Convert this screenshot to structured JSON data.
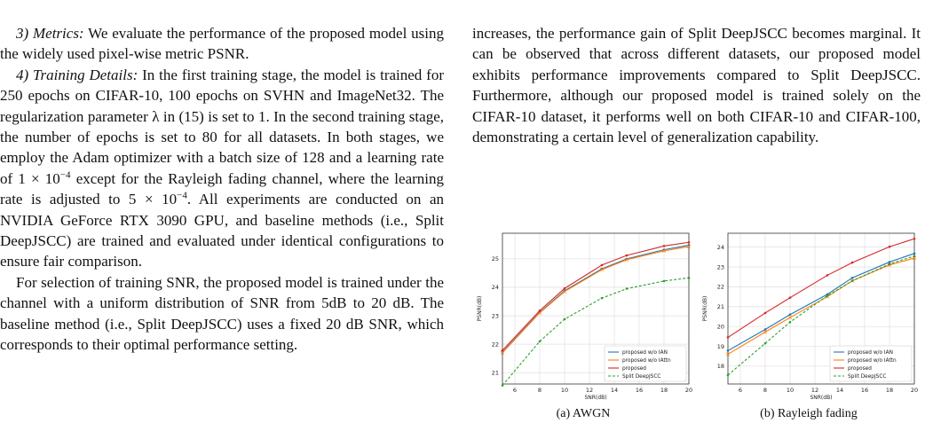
{
  "left_column": {
    "metrics_heading": "3) Metrics:",
    "metrics_text": " We evaluate the performance of the proposed model using the widely used pixel-wise metric PSNR.",
    "training_heading": "4) Training Details:",
    "training_text_1": " In the first training stage, the model is trained for 250 epochs on CIFAR-10, 100 epochs on SVHN and ImageNet32. The regularization parameter λ in (15) is set to 1. In the second training stage, the number of epochs is set to 80 for all datasets. In both stages, we employ the Adam optimizer with a batch size of 128 and a learning rate of 1 × 10",
    "lr_exp_1": "−4",
    "training_text_2": " except for the Rayleigh fading channel, where the learning rate is adjusted to 5 × 10",
    "lr_exp_2": "−4",
    "training_text_3": ". All experiments are conducted on an NVIDIA GeForce RTX 3090 GPU, and baseline methods (i.e., Split DeepJSCC) are trained and evaluated under identical configurations to ensure fair comparison.",
    "snr_paragraph": "For selection of training SNR, the proposed model is trained under the channel with a uniform distribution of SNR from 5dB to 20 dB. The baseline method (i.e., Split DeepJSCC) uses a fixed 20 dB SNR, which corresponds to their optimal performance setting."
  },
  "right_column": {
    "paragraph": "increases, the performance gain of Split DeepJSCC becomes marginal. It can be observed that across different datasets, our proposed model exhibits performance improvements compared to Split DeepJSCC. Furthermore, although our proposed model is trained solely on the CIFAR-10 dataset, it performs well on both CIFAR-10 and CIFAR-100, demonstrating a certain level of generalization capability."
  },
  "chart_data": [
    {
      "type": "line",
      "caption": "(a) AWGN",
      "xlabel": "SNR(dB)",
      "ylabel": "PSNR(dB)",
      "xlim": [
        5,
        20
      ],
      "ylim": [
        20.6,
        25.9
      ],
      "xticks": [
        6,
        8,
        10,
        12,
        14,
        16,
        18,
        20
      ],
      "yticks": [
        21,
        22,
        23,
        24,
        25
      ],
      "grid": true,
      "legend_position": "lower-right",
      "x": [
        5,
        8,
        10,
        13,
        15,
        18,
        20
      ],
      "series": [
        {
          "name": "proposed w/o IAN",
          "color": "#1f77b4",
          "dashed": false,
          "values": [
            21.72,
            23.12,
            23.88,
            24.65,
            25.0,
            25.32,
            25.48
          ]
        },
        {
          "name": "proposed w/o IAttn",
          "color": "#ff7f0e",
          "dashed": false,
          "values": [
            21.7,
            23.1,
            23.85,
            24.62,
            24.97,
            25.28,
            25.43
          ]
        },
        {
          "name": "proposed",
          "color": "#d62728",
          "dashed": false,
          "values": [
            21.78,
            23.18,
            23.96,
            24.78,
            25.12,
            25.45,
            25.58
          ]
        },
        {
          "name": "Split DeepJSCC",
          "color": "#2ca02c",
          "dashed": true,
          "values": [
            20.55,
            22.1,
            22.88,
            23.62,
            23.95,
            24.22,
            24.33
          ]
        }
      ]
    },
    {
      "type": "line",
      "caption": "(b) Rayleigh fading",
      "xlabel": "SNR(dB)",
      "ylabel": "PSNR(dB)",
      "xlim": [
        5,
        20
      ],
      "ylim": [
        17.1,
        24.7
      ],
      "xticks": [
        6,
        8,
        10,
        12,
        14,
        16,
        18,
        20
      ],
      "yticks": [
        18,
        19,
        20,
        21,
        22,
        23,
        24
      ],
      "grid": true,
      "legend_position": "lower-right",
      "x": [
        5,
        8,
        10,
        13,
        15,
        18,
        20
      ],
      "series": [
        {
          "name": "proposed w/o IAN",
          "color": "#1f77b4",
          "dashed": false,
          "values": [
            18.78,
            19.85,
            20.6,
            21.62,
            22.45,
            23.25,
            23.68
          ]
        },
        {
          "name": "proposed w/o IAttn",
          "color": "#ff7f0e",
          "dashed": false,
          "values": [
            18.6,
            19.72,
            20.45,
            21.5,
            22.3,
            23.1,
            23.45
          ]
        },
        {
          "name": "proposed",
          "color": "#d62728",
          "dashed": false,
          "values": [
            19.45,
            20.68,
            21.45,
            22.58,
            23.22,
            24.02,
            24.42
          ]
        },
        {
          "name": "Split DeepJSCC",
          "color": "#2ca02c",
          "dashed": true,
          "values": [
            17.55,
            19.15,
            20.22,
            21.55,
            22.3,
            23.15,
            23.55
          ]
        }
      ]
    }
  ]
}
